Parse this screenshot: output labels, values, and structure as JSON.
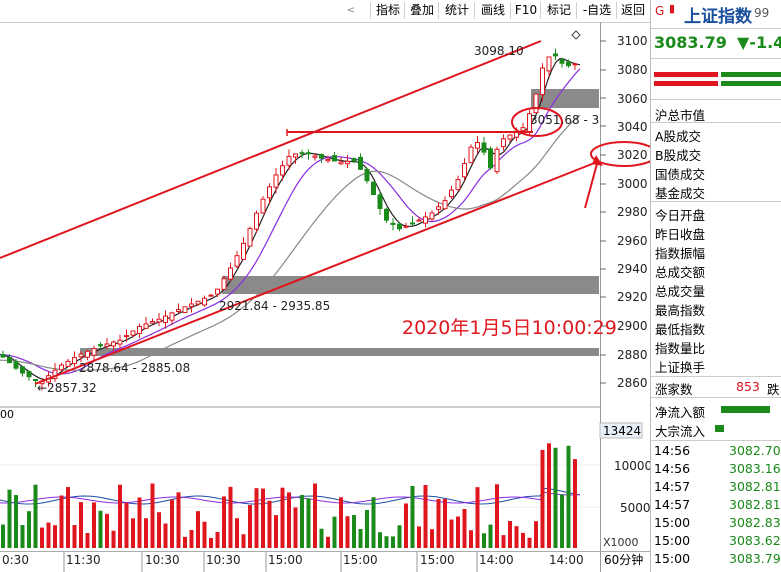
{
  "toolbar": {
    "buttons": [
      "指标",
      "叠加",
      "统计",
      "画线",
      "F10",
      "标记",
      "-自选",
      "返回"
    ]
  },
  "chart": {
    "price_axis": [
      "3100",
      "3080",
      "3060",
      "3040",
      "3020",
      "3000",
      "2980",
      "2960",
      "2940",
      "2920",
      "2900",
      "2880",
      "2860"
    ],
    "volume_axis": [
      "10000",
      "5000"
    ],
    "volume_current": "13424",
    "volume_tag": "00",
    "time_axis": [
      "0:30",
      "11:30",
      "10:30",
      "10:30",
      "15:00",
      "15:00",
      "15:00",
      "14:00",
      "14:00"
    ],
    "unit_label": "X1000",
    "period_label": "60分钟",
    "annotation_time": "2020年1月5日10:00:29",
    "labels": {
      "high": "3098.10",
      "zone_top": "3051.68 - 3",
      "zone_mid": "2921.84 - 2935.85",
      "zone_low": "2878.64 - 2885.08",
      "low": "←2857.32"
    }
  },
  "quote": {
    "title_prefix": "G",
    "title": "上证指数",
    "code_partial": "99",
    "price": "3083.79",
    "change": "▼-1.4",
    "rows": [
      "沪总市值",
      "A股成交",
      "B股成交",
      "国债成交",
      "基金成交",
      "今日开盘",
      "昨日收盘",
      "指数振幅",
      "总成交额",
      "总成交量",
      "最高指数",
      "最低指数",
      "指数量比",
      "上证换手"
    ],
    "up_label": "涨家数",
    "up_count": "853",
    "down_label": "跌",
    "netflow_label": "净流入额",
    "block_label": "大宗流入",
    "ticks": [
      {
        "time": "14:56",
        "price": "3082.70"
      },
      {
        "time": "14:56",
        "price": "3083.16"
      },
      {
        "time": "14:57",
        "price": "3082.81"
      },
      {
        "time": "14:57",
        "price": "3082.81"
      },
      {
        "time": "15:00",
        "price": "3082.83"
      },
      {
        "time": "15:00",
        "price": "3083.62"
      },
      {
        "time": "15:00",
        "price": "3083.79"
      }
    ]
  },
  "colors": {
    "up": "#e0161f",
    "down": "#1a8a1a",
    "accent_blue": "#1a4fa0",
    "zone": "#8a8a8a"
  }
}
